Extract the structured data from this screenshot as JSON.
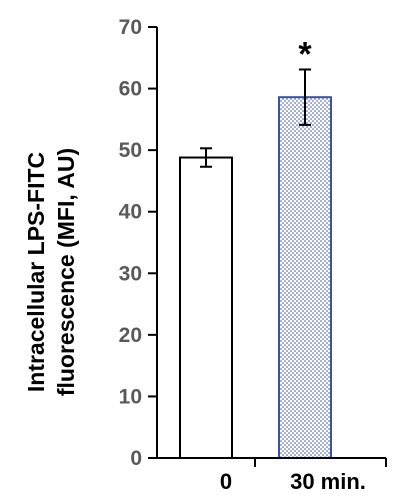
{
  "chart_data": {
    "type": "bar",
    "categories": [
      "0",
      "30 min."
    ],
    "values": [
      48.8,
      58.6
    ],
    "errors": [
      1.5,
      4.5
    ],
    "ylabel_lines": [
      "Intracellular LPS-FITC",
      "fluorescence (MFI, AU)"
    ],
    "ylim": [
      0,
      70
    ],
    "yticks": [
      "0",
      "10",
      "20",
      "30",
      "40",
      "50",
      "60",
      "70"
    ],
    "annotation": "*",
    "grid": false,
    "colors": {
      "bar_0_fill": "#ffffff",
      "bar_0_stroke": "#000000",
      "bar_1_fill": "#d9dce8",
      "bar_1_stroke": "#3a52a5",
      "axis": "#000000"
    }
  }
}
